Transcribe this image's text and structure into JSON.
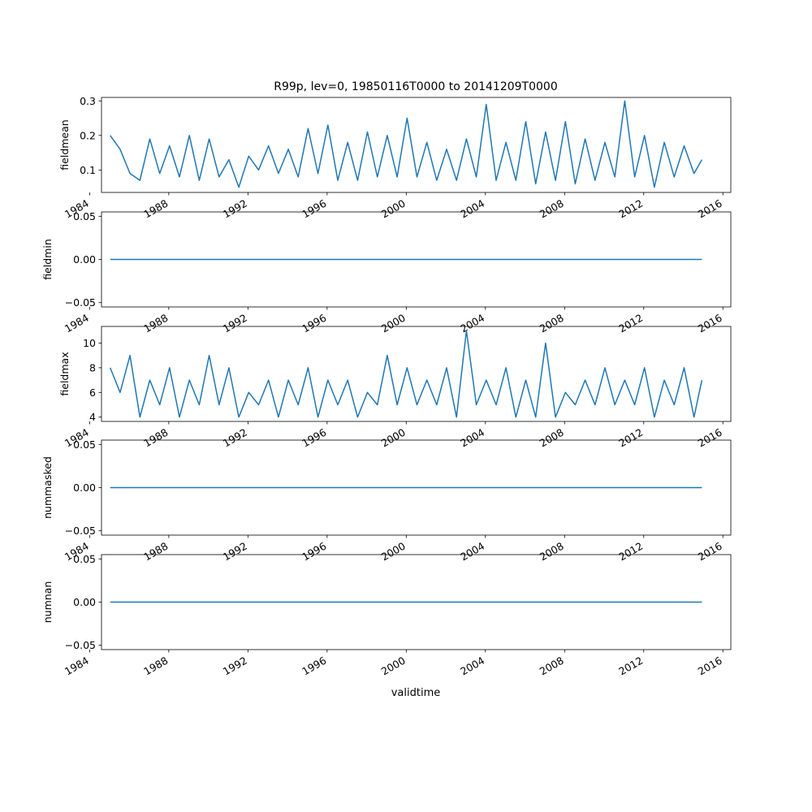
{
  "chart_data": {
    "type": "line",
    "title": "R99p, lev=0, 19850116T0000 to 20141209T0000",
    "xlabel": "validtime",
    "x_range": [
      1984.6,
      2016.4
    ],
    "x_ticks": [
      1984,
      1988,
      1992,
      1996,
      2000,
      2004,
      2008,
      2012,
      2016
    ],
    "x_tick_labels": [
      "1984",
      "1988",
      "1992",
      "1996",
      "2000",
      "2004",
      "2008",
      "2012",
      "2016"
    ],
    "line_color": "#1f77b4",
    "grid": false,
    "panels": [
      {
        "ylabel": "fieldmean",
        "ylim": [
          0.035,
          0.31
        ],
        "y_ticks": [
          0.1,
          0.2,
          0.3
        ],
        "y_tick_labels": [
          "0.1",
          "0.2",
          "0.3"
        ],
        "x": [
          1985.04,
          1985.54,
          1986.04,
          1986.54,
          1987.04,
          1987.54,
          1988.04,
          1988.54,
          1989.04,
          1989.54,
          1990.04,
          1990.54,
          1991.04,
          1991.54,
          1992.04,
          1992.54,
          1993.04,
          1993.54,
          1994.04,
          1994.54,
          1995.04,
          1995.54,
          1996.04,
          1996.54,
          1997.04,
          1997.54,
          1998.04,
          1998.54,
          1999.04,
          1999.54,
          2000.04,
          2000.54,
          2001.04,
          2001.54,
          2002.04,
          2002.54,
          2003.04,
          2003.54,
          2004.04,
          2004.54,
          2005.04,
          2005.54,
          2006.04,
          2006.54,
          2007.04,
          2007.54,
          2008.04,
          2008.54,
          2009.04,
          2009.54,
          2010.04,
          2010.54,
          2011.04,
          2011.54,
          2012.04,
          2012.54,
          2013.04,
          2013.54,
          2014.04,
          2014.54,
          2014.94
        ],
        "values": [
          0.2,
          0.16,
          0.09,
          0.07,
          0.19,
          0.09,
          0.17,
          0.08,
          0.2,
          0.07,
          0.19,
          0.08,
          0.13,
          0.05,
          0.14,
          0.1,
          0.17,
          0.09,
          0.16,
          0.08,
          0.22,
          0.09,
          0.23,
          0.07,
          0.18,
          0.07,
          0.21,
          0.08,
          0.2,
          0.08,
          0.25,
          0.08,
          0.18,
          0.07,
          0.16,
          0.07,
          0.19,
          0.08,
          0.29,
          0.07,
          0.18,
          0.07,
          0.24,
          0.06,
          0.21,
          0.07,
          0.24,
          0.06,
          0.19,
          0.07,
          0.18,
          0.08,
          0.3,
          0.08,
          0.2,
          0.05,
          0.18,
          0.08,
          0.17,
          0.09,
          0.13
        ]
      },
      {
        "ylabel": "fieldmin",
        "ylim": [
          -0.055,
          0.055
        ],
        "y_ticks": [
          -0.05,
          0.0,
          0.05
        ],
        "y_tick_labels": [
          "−0.05",
          "0.00",
          "0.05"
        ],
        "x": [
          1985.04,
          2014.94
        ],
        "values": [
          0,
          0
        ]
      },
      {
        "ylabel": "fieldmax",
        "ylim": [
          3.65,
          11.35
        ],
        "y_ticks": [
          4,
          6,
          8,
          10
        ],
        "y_tick_labels": [
          "4",
          "6",
          "8",
          "10"
        ],
        "x": [
          1985.04,
          1985.54,
          1986.04,
          1986.54,
          1987.04,
          1987.54,
          1988.04,
          1988.54,
          1989.04,
          1989.54,
          1990.04,
          1990.54,
          1991.04,
          1991.54,
          1992.04,
          1992.54,
          1993.04,
          1993.54,
          1994.04,
          1994.54,
          1995.04,
          1995.54,
          1996.04,
          1996.54,
          1997.04,
          1997.54,
          1998.04,
          1998.54,
          1999.04,
          1999.54,
          2000.04,
          2000.54,
          2001.04,
          2001.54,
          2002.04,
          2002.54,
          2003.04,
          2003.54,
          2004.04,
          2004.54,
          2005.04,
          2005.54,
          2006.04,
          2006.54,
          2007.04,
          2007.54,
          2008.04,
          2008.54,
          2009.04,
          2009.54,
          2010.04,
          2010.54,
          2011.04,
          2011.54,
          2012.04,
          2012.54,
          2013.04,
          2013.54,
          2014.04,
          2014.54,
          2014.94
        ],
        "values": [
          8,
          6,
          9,
          4,
          7,
          5,
          8,
          4,
          7,
          5,
          9,
          5,
          8,
          4,
          6,
          5,
          7,
          4,
          7,
          5,
          8,
          4,
          7,
          5,
          7,
          4,
          6,
          5,
          9,
          5,
          8,
          5,
          7,
          5,
          8,
          4,
          11,
          5,
          7,
          5,
          8,
          4,
          7,
          4,
          10,
          4,
          6,
          5,
          7,
          5,
          8,
          5,
          7,
          5,
          8,
          4,
          7,
          5,
          8,
          4,
          7
        ]
      },
      {
        "ylabel": "nummasked",
        "ylim": [
          -0.055,
          0.055
        ],
        "y_ticks": [
          -0.05,
          0.0,
          0.05
        ],
        "y_tick_labels": [
          "−0.05",
          "0.00",
          "0.05"
        ],
        "x": [
          1985.04,
          2014.94
        ],
        "values": [
          0,
          0
        ]
      },
      {
        "ylabel": "numnan",
        "ylim": [
          -0.055,
          0.055
        ],
        "y_ticks": [
          -0.05,
          0.0,
          0.05
        ],
        "y_tick_labels": [
          "−0.05",
          "0.00",
          "0.05"
        ],
        "x": [
          1985.04,
          2014.94
        ],
        "values": [
          0,
          0
        ]
      }
    ]
  }
}
